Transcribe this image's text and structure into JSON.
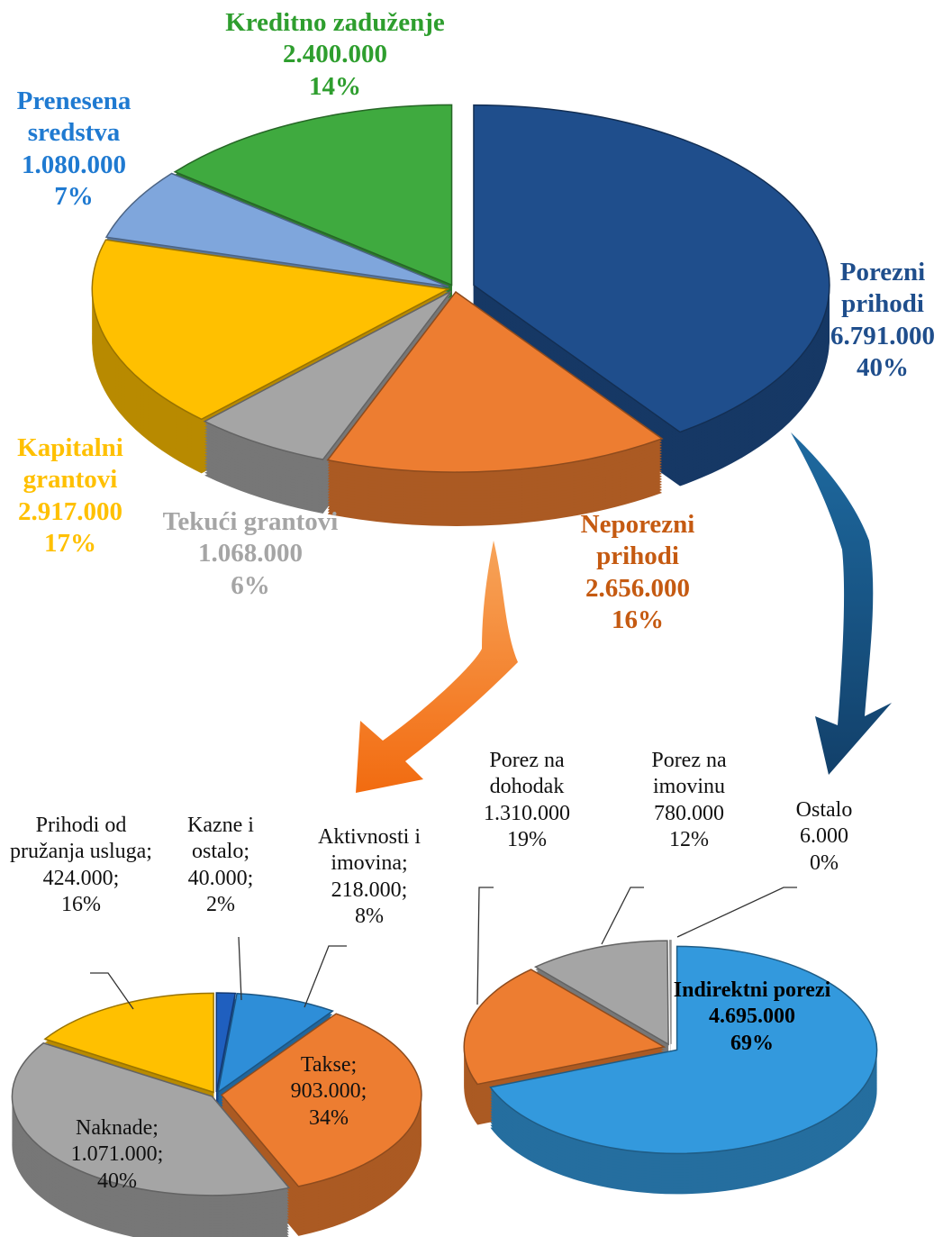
{
  "chart_data": [
    {
      "type": "pie",
      "categories": [
        "Porezni prihodi",
        "Neporezni prihodi",
        "Tekući grantovi",
        "Kapitalni grantovi",
        "Prenesena sredstva",
        "Kreditno zaduženje"
      ],
      "values": [
        6791000,
        2656000,
        1068000,
        2917000,
        1080000,
        2400000
      ],
      "value_labels": [
        "6.791.000",
        "2.656.000",
        "1.068.000",
        "2.917.000",
        "1.080.000",
        "2.400.000"
      ],
      "percents": [
        40,
        16,
        6,
        17,
        7,
        14
      ],
      "percent_labels": [
        "40%",
        "16%",
        "6%",
        "17%",
        "7%",
        "14%"
      ],
      "colors": [
        "#1f4e8c",
        "#ed7d31",
        "#a5a5a5",
        "#ffc000",
        "#7fa6dc",
        "#3faa3f"
      ],
      "label_colors": [
        "#1f4e8c",
        "#c55a11",
        "#a5a5a5",
        "#ffc000",
        "#1f7ad1",
        "#2e9e2e"
      ]
    },
    {
      "type": "pie",
      "categories": [
        "Kazne i ostalo;",
        "Aktivnosti i imovina;",
        "Takse;",
        "Naknade;",
        "Prihodi od pružanja usluga;"
      ],
      "values": [
        40000,
        218000,
        903000,
        1071000,
        424000
      ],
      "value_labels": [
        "40.000;",
        "218.000;",
        "903.000;",
        "1.071.000;",
        "424.000;"
      ],
      "percents": [
        2,
        8,
        34,
        40,
        16
      ],
      "percent_labels": [
        "2%",
        "8%",
        "34%",
        "40%",
        "16%"
      ],
      "colors": [
        "#1f5fbf",
        "#2e8ed8",
        "#ed7d31",
        "#a5a5a5",
        "#ffc000"
      ]
    },
    {
      "type": "pie",
      "categories": [
        "Indirektni porezi",
        "Porez na dohodak",
        "Porez na imovinu",
        "Ostalo"
      ],
      "values": [
        4695000,
        1310000,
        780000,
        6000
      ],
      "value_labels": [
        "4.695.000",
        "1.310.000",
        "780.000",
        "6.000"
      ],
      "percents": [
        69,
        19,
        12,
        0
      ],
      "percent_labels": [
        "69%",
        "19%",
        "12%",
        "0%"
      ],
      "colors": [
        "#3399dd",
        "#ed7d31",
        "#a5a5a5",
        "#f2f2f2"
      ]
    }
  ]
}
